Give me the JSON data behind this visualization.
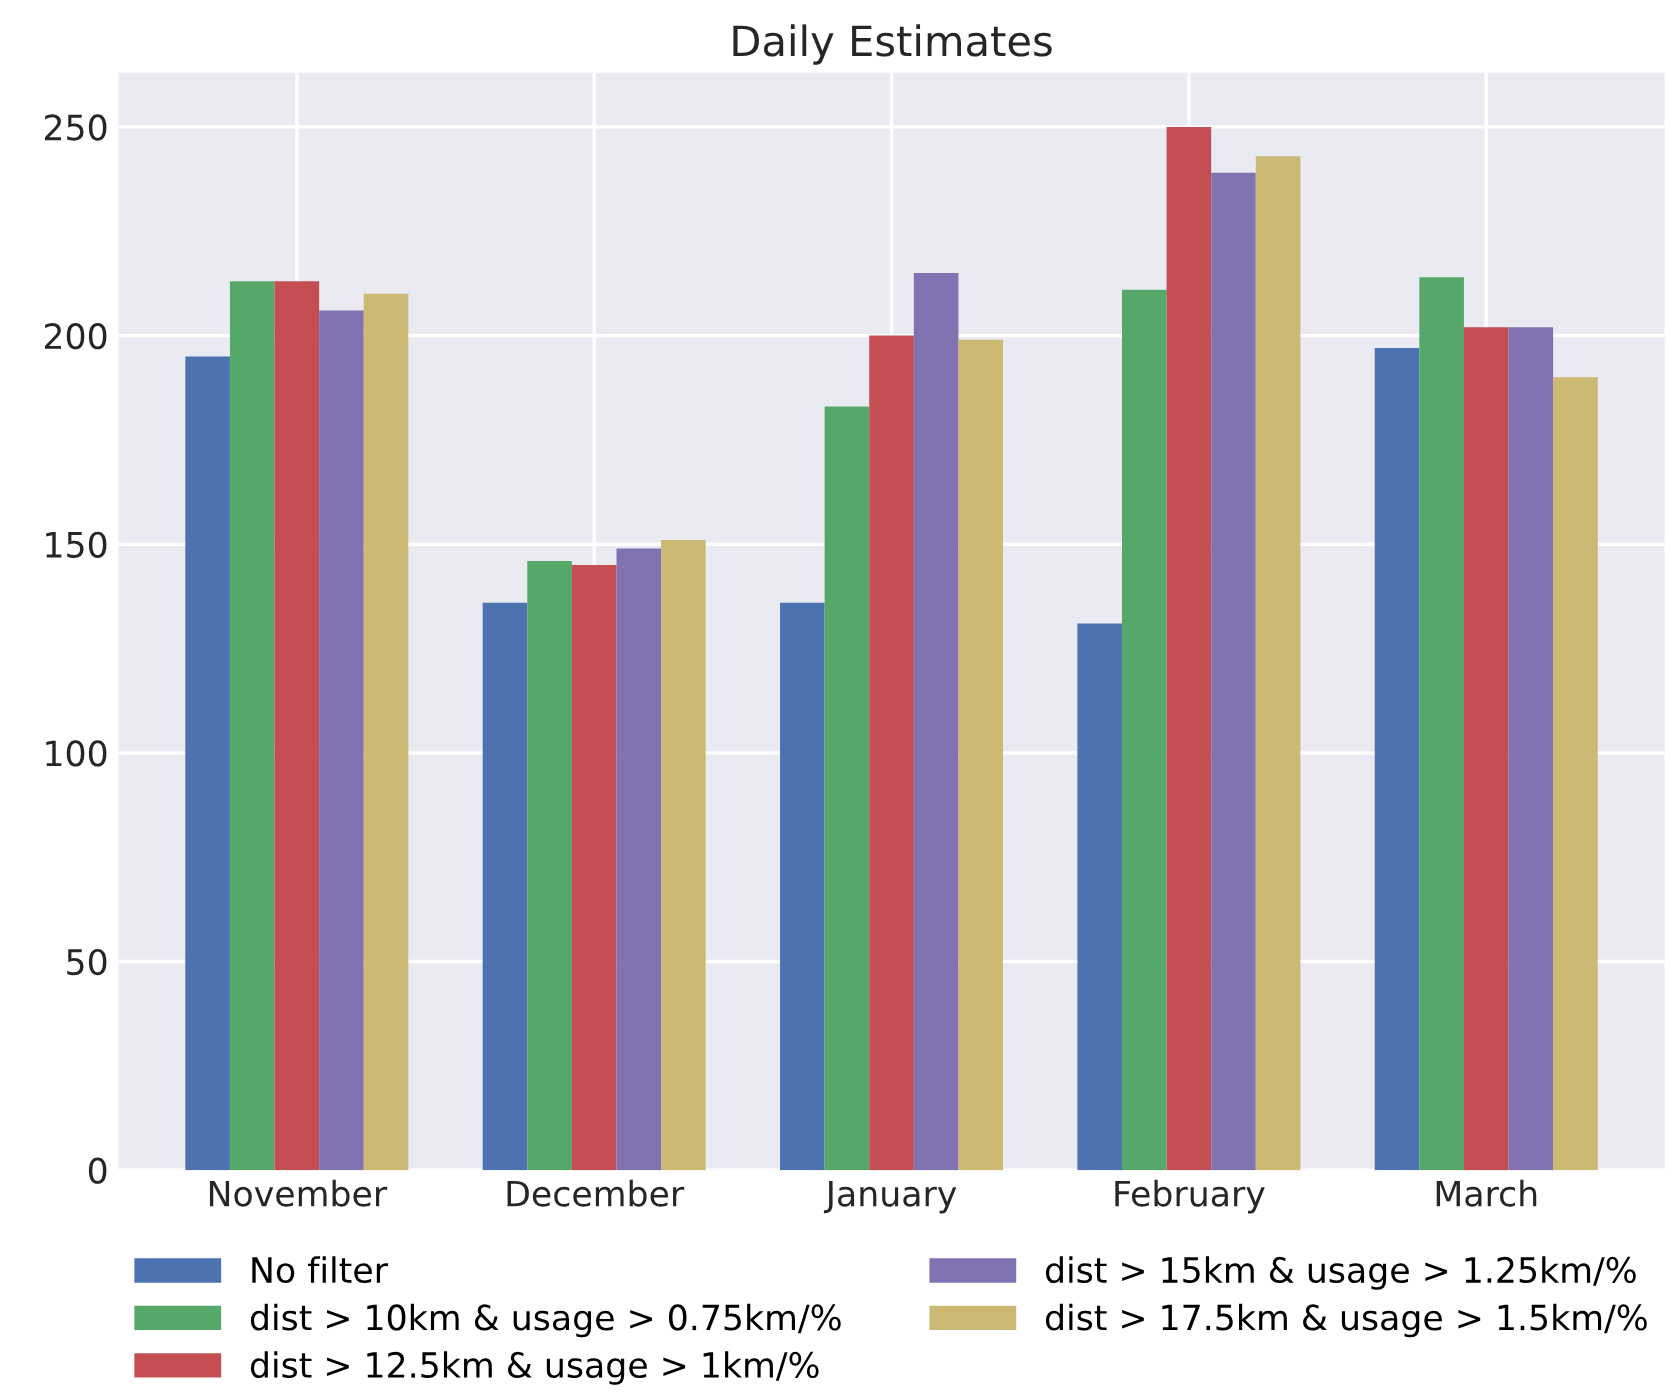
{
  "chart_data": {
    "type": "bar",
    "title": "Daily Estimates",
    "categories": [
      "November",
      "December",
      "January",
      "February",
      "March"
    ],
    "series": [
      {
        "name": "No filter",
        "color": "#4c72b0",
        "values": [
          195,
          136,
          136,
          131,
          197
        ]
      },
      {
        "name": "dist > 10km & usage > 0.75km/%",
        "color": "#55a868",
        "values": [
          213,
          146,
          183,
          211,
          214
        ]
      },
      {
        "name": "dist > 12.5km & usage > 1km/%",
        "color": "#c44e52",
        "values": [
          213,
          145,
          200,
          250,
          202
        ]
      },
      {
        "name": "dist > 15km & usage > 1.25km/%",
        "color": "#8172b2",
        "values": [
          206,
          149,
          215,
          239,
          202
        ]
      },
      {
        "name": "dist > 17.5km & usage > 1.5km/%",
        "color": "#ccb974",
        "values": [
          210,
          151,
          199,
          243,
          190
        ]
      }
    ],
    "ylim": [
      0,
      263
    ],
    "yticks": [
      0,
      50,
      100,
      150,
      200,
      250
    ],
    "grid": true,
    "legend": "bottom"
  }
}
